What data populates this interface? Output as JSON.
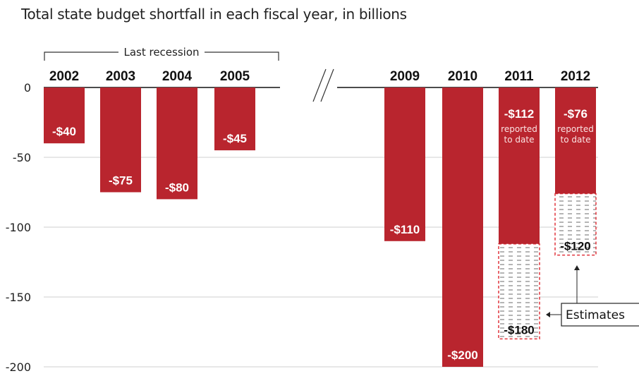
{
  "title": "Total state budget shortfall in each fiscal year, in billions",
  "colors": {
    "bar": "#b9252e",
    "estimate_border": "#e0343c",
    "grid": "#cfcfcf",
    "text": "#222222"
  },
  "chart_data": {
    "type": "bar",
    "title": "Total state budget shortfall in each fiscal year, in billions",
    "xlabel": "",
    "ylabel": "",
    "ylim": [
      -200,
      0
    ],
    "yticks": [
      "0",
      "-50",
      "-100",
      "-150",
      "-200"
    ],
    "grid": true,
    "categories": [
      "2002",
      "2003",
      "2004",
      "2005",
      "2009",
      "2010",
      "2011",
      "2012"
    ],
    "series": [
      {
        "values": [
          -40,
          -75,
          -80,
          -45,
          -110,
          -200,
          -112,
          -76
        ]
      },
      {
        "values": [
          null,
          null,
          null,
          null,
          null,
          null,
          -180,
          -120
        ]
      }
    ],
    "value_labels": [
      "-$40",
      "-$75",
      "-$80",
      "-$45",
      "-$110",
      "-$200",
      "-$112",
      "-$76"
    ],
    "estimate_labels": [
      "",
      "",
      "",
      "",
      "",
      "",
      "-$180",
      "-$120"
    ],
    "notes": [
      "",
      "",
      "",
      "",
      "",
      "",
      "reported to date",
      "reported to date"
    ],
    "brace_label": "Last recession",
    "estimates_label": "Estimates"
  }
}
